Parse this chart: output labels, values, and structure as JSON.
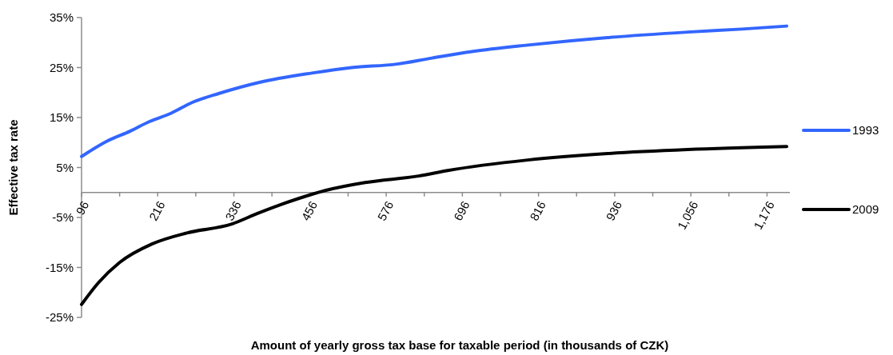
{
  "chart_data": {
    "type": "line",
    "xlabel": "Amount of yearly gross tax base for taxable period (in thousands of CZK)",
    "ylabel": "Effective tax rate",
    "xlim": [
      96,
      1212
    ],
    "xticks": [
      96,
      {
        "value": 156,
        "label": null
      },
      216,
      {
        "value": 276,
        "label": null
      },
      336,
      {
        "value": 396,
        "label": null
      },
      456,
      {
        "value": 516,
        "label": null
      },
      576,
      {
        "value": 636,
        "label": null
      },
      696,
      {
        "value": 756,
        "label": null
      },
      816,
      {
        "value": 876,
        "label": null
      },
      936,
      {
        "value": 996,
        "label": null
      },
      {
        "value": 1056,
        "label": "1,056"
      },
      {
        "value": 1116,
        "label": null
      },
      {
        "value": 1176,
        "label": "1,176"
      }
    ],
    "ylim": [
      -25,
      35
    ],
    "yticks": [
      {
        "value": -25,
        "label": "-25%"
      },
      {
        "value": -15,
        "label": "-15%"
      },
      {
        "value": -5,
        "label": "-5%"
      },
      {
        "value": 5,
        "label": "5%"
      },
      {
        "value": 15,
        "label": "15%"
      },
      {
        "value": 25,
        "label": "25%"
      },
      {
        "value": 35,
        "label": "35%"
      }
    ],
    "grid": false,
    "legend": "right",
    "marker": "none",
    "line_style": "solid",
    "series": [
      {
        "name": "1993",
        "color": "#3366ff",
        "x": [
          96,
          135,
          173,
          203,
          236,
          270,
          312,
          375,
          459,
          522,
          593,
          648,
          711,
          799,
          925,
          1051,
          1136,
          1207
        ],
        "values": [
          7.2,
          10.2,
          12.3,
          14.2,
          15.8,
          18.0,
          19.8,
          22.0,
          23.9,
          25.0,
          25.7,
          26.9,
          28.2,
          29.5,
          31.0,
          32.1,
          32.7,
          33.3
        ]
      },
      {
        "name": "2009",
        "color": "#000000",
        "x": [
          96,
          123,
          156,
          207,
          262,
          333,
          375,
          438,
          480,
          543,
          627,
          673,
          799,
          925,
          1051,
          1207
        ],
        "values": [
          -22.4,
          -18.0,
          -14.0,
          -10.3,
          -8.1,
          -6.3,
          -4.1,
          -1.2,
          0.4,
          2.0,
          3.3,
          4.4,
          6.5,
          7.8,
          8.6,
          9.2
        ]
      }
    ]
  }
}
